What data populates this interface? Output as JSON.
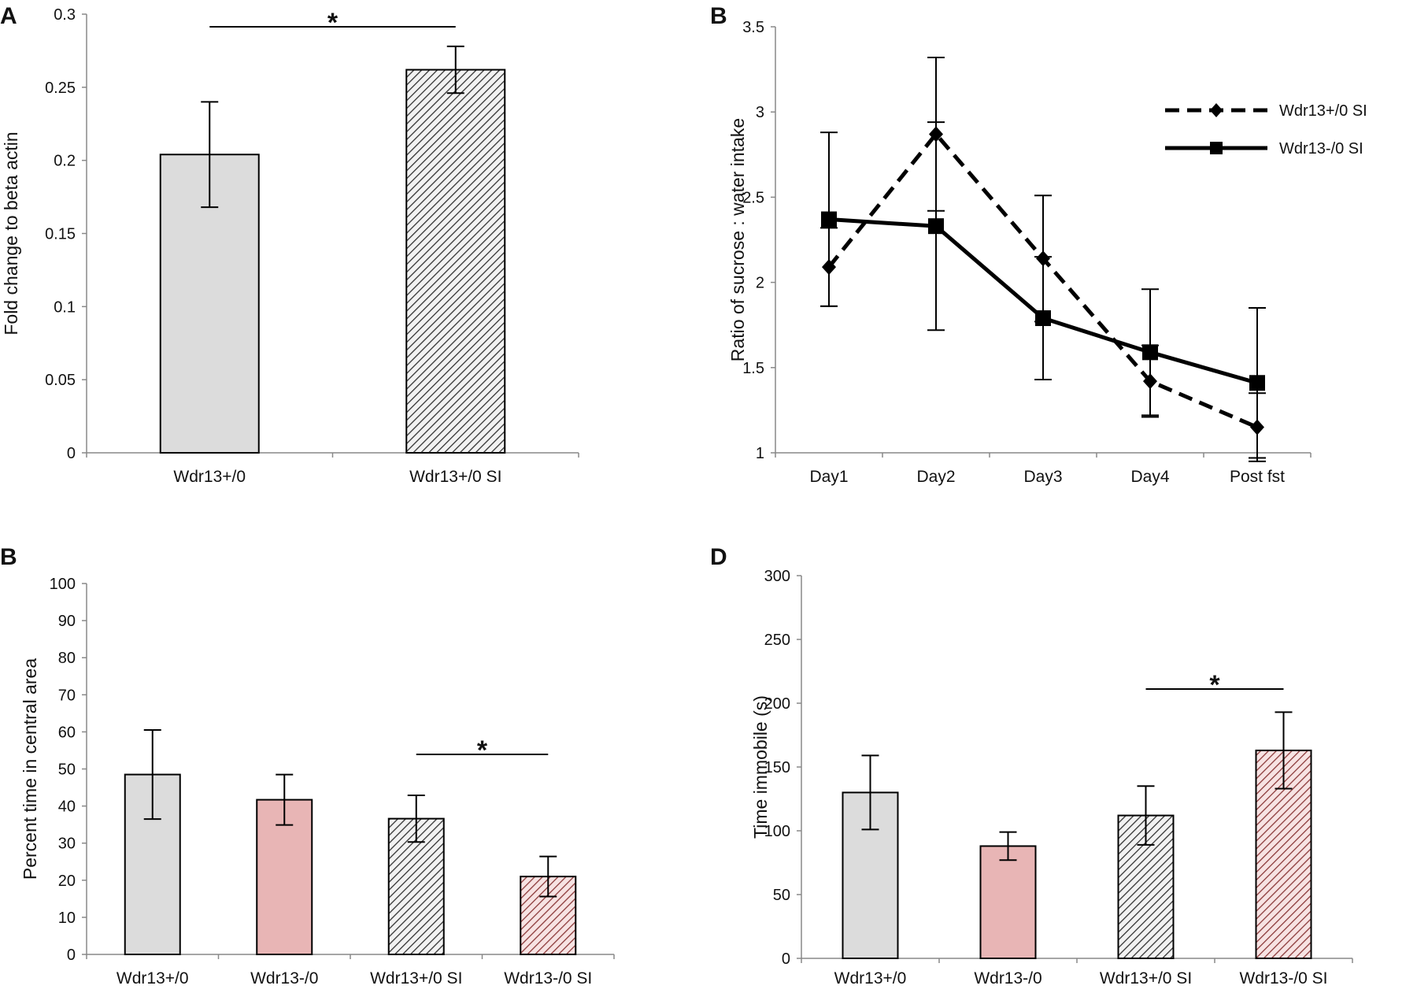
{
  "chart_data": [
    {
      "id": "A",
      "type": "bar",
      "panel_label": "A",
      "title": "",
      "xlabel": "",
      "ylabel": "Fold change to beta actin",
      "ylim": [
        0,
        0.3
      ],
      "yticks": [
        "0",
        "0.05",
        "0.1",
        "0.15",
        "0.2",
        "0.25",
        "0.3"
      ],
      "categories": [
        "Wdr13+/0",
        "Wdr13+/0 SI"
      ],
      "values": [
        0.204,
        0.262
      ],
      "errors": [
        0.036,
        0.016
      ],
      "fills": [
        "solid-gray",
        "hatch-gray"
      ],
      "significance": [
        {
          "from": 0,
          "to": 1,
          "label": "*"
        }
      ],
      "grid": false
    },
    {
      "id": "B-line",
      "type": "line",
      "panel_label": "B",
      "title": "",
      "xlabel": "",
      "ylabel": "Ratio of sucrose : water intake",
      "ylim": [
        1,
        3.5
      ],
      "yticks": [
        "1",
        "1.5",
        "2",
        "2.5",
        "3",
        "3.5"
      ],
      "categories": [
        "Day1",
        "Day2",
        "Day3",
        "Day4",
        "Post fst"
      ],
      "series": [
        {
          "name": "Wdr13+/0 SI",
          "style": "dashed",
          "marker": "diamond",
          "values": [
            2.09,
            2.87,
            2.14,
            1.42,
            1.15
          ],
          "errors": [
            0.23,
            0.45,
            0.37,
            0.21,
            0.2
          ]
        },
        {
          "name": "Wdr13-/0 SI",
          "style": "solid",
          "marker": "square",
          "values": [
            2.37,
            2.33,
            1.79,
            1.59,
            1.41
          ],
          "errors": [
            0.51,
            0.61,
            0.36,
            0.37,
            0.44
          ]
        }
      ],
      "legend_position": "top-right",
      "grid": false
    },
    {
      "id": "B-bar",
      "type": "bar",
      "panel_label": "B",
      "title": "",
      "xlabel": "",
      "ylabel": "Percent time in central area",
      "ylim": [
        0,
        100
      ],
      "yticks": [
        "0",
        "10",
        "20",
        "30",
        "40",
        "50",
        "60",
        "70",
        "80",
        "90",
        "100"
      ],
      "categories": [
        "Wdr13+/0",
        "Wdr13-/0",
        "Wdr13+/0 SI",
        "Wdr13-/0 SI"
      ],
      "values": [
        48.5,
        41.7,
        36.6,
        21
      ],
      "errors": [
        12,
        6.8,
        6.3,
        5.4
      ],
      "fills": [
        "solid-gray",
        "solid-pink",
        "hatch-gray",
        "hatch-pink"
      ],
      "significance": [
        {
          "from": 2,
          "to": 3,
          "label": "*"
        }
      ],
      "grid": false
    },
    {
      "id": "D",
      "type": "bar",
      "panel_label": "D",
      "title": "",
      "xlabel": "",
      "ylabel": "Time immobile (s)",
      "ylim": [
        0,
        300
      ],
      "yticks": [
        "0",
        "50",
        "100",
        "150",
        "200",
        "250",
        "300"
      ],
      "categories": [
        "Wdr13+/0",
        "Wdr13-/0",
        "Wdr13+/0 SI",
        "Wdr13-/0 SI"
      ],
      "values": [
        130,
        88,
        112,
        163
      ],
      "errors": [
        29,
        11,
        23,
        30
      ],
      "fills": [
        "solid-gray",
        "solid-pink",
        "hatch-gray",
        "hatch-pink"
      ],
      "significance": [
        {
          "from": 2,
          "to": 3,
          "label": "*"
        }
      ],
      "grid": false
    }
  ],
  "colors": {
    "gray_fill": "#dcdcdc",
    "pink_fill": "#e8b5b5",
    "hatch_gray_line": "#333333",
    "hatch_pink_line": "#8c3a3a",
    "axis": "#888888",
    "ink": "#000000"
  }
}
